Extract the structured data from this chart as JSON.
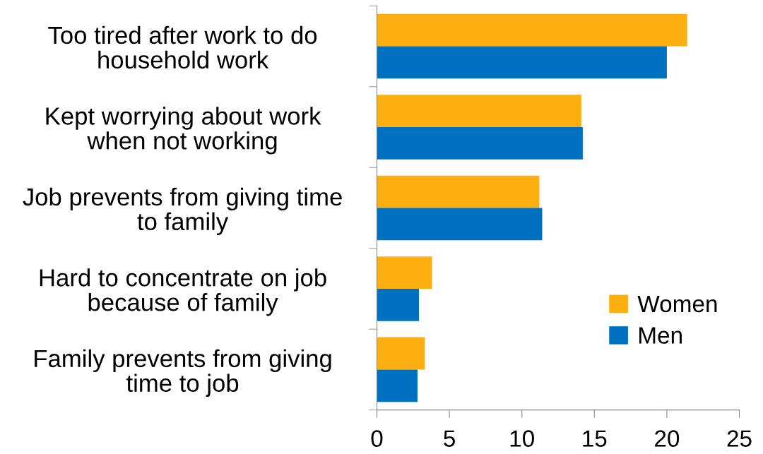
{
  "chart_data": {
    "type": "bar",
    "orientation": "horizontal",
    "categories": [
      "Too tired after work to do\nhousehold work",
      "Kept worrying about work\nwhen not working",
      "Job prevents from giving time\nto family",
      "Hard to concentrate on job\nbecause of family",
      "Family prevents from giving\ntime to job"
    ],
    "series": [
      {
        "name": "Women",
        "color": "#fdaf12",
        "values": [
          21.4,
          14.1,
          11.2,
          3.8,
          3.3
        ]
      },
      {
        "name": "Men",
        "color": "#0070c0",
        "values": [
          20.0,
          14.2,
          11.4,
          2.9,
          2.8
        ]
      }
    ],
    "xlim": [
      0,
      25
    ],
    "xticks": [
      0,
      5,
      10,
      15,
      20,
      25
    ],
    "grid": false,
    "legend": "bottom right"
  }
}
